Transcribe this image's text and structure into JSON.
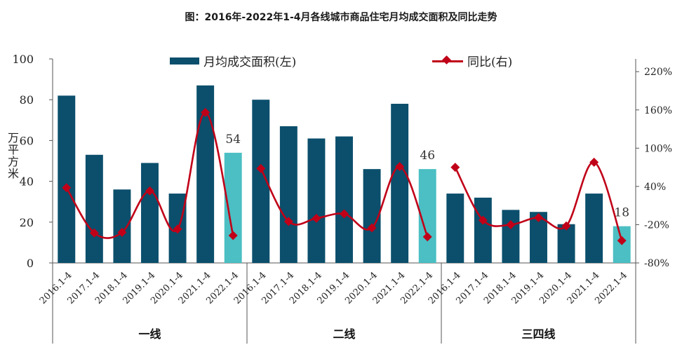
{
  "title": "图：2016年-2022年1-4月各线城市商品住宅月均成交面积及同比走势",
  "colors": {
    "bar": "#0b4f6c",
    "bar_highlight": "#4bbfc3",
    "line": "#c00018"
  },
  "y_left_label": [
    "万",
    "平",
    "方",
    "米"
  ],
  "legend": {
    "bar": "月均成交面积(左)",
    "line": "同比(右)"
  },
  "chart_data": {
    "type": "bar",
    "categories": [
      "2016.1-4",
      "2017.1-4",
      "2018.1-4",
      "2019.1-4",
      "2020.1-4",
      "2021.1-4",
      "2022.1-4",
      "2016.1-4",
      "2017.1-4",
      "2018.1-4",
      "2019.1-4",
      "2020.1-4",
      "2021.1-4",
      "2022.1-4",
      "2016.1-4",
      "2017.1-4",
      "2018.1-4",
      "2019.1-4",
      "2020.1-4",
      "2021.1-4",
      "2022.1-4"
    ],
    "groups": [
      {
        "label": "一线",
        "start": 0,
        "end": 6
      },
      {
        "label": "二线",
        "start": 7,
        "end": 13
      },
      {
        "label": "三四线",
        "start": 14,
        "end": 20
      }
    ],
    "series": [
      {
        "name": "月均成交面积(左)",
        "axis": "left",
        "type": "bar",
        "values": [
          82,
          53,
          36,
          49,
          34,
          87,
          54,
          80,
          67,
          61,
          62,
          46,
          78,
          46,
          34,
          32,
          26,
          25,
          19,
          34,
          18
        ]
      },
      {
        "name": "同比(右)",
        "axis": "right",
        "type": "line",
        "segmented_by_group": true,
        "values": [
          38,
          -33,
          -32,
          33,
          -27,
          156,
          -37,
          68,
          -15,
          -10,
          -3,
          -25,
          71,
          -39,
          70,
          -13,
          -20,
          -9,
          -22,
          78,
          -45
        ]
      }
    ],
    "highlight_indices": [
      6,
      13,
      20
    ],
    "data_labels": [
      {
        "index": 6,
        "text": "54"
      },
      {
        "index": 13,
        "text": "46"
      },
      {
        "index": 20,
        "text": "18"
      }
    ],
    "y_left": {
      "min": 0,
      "max": 100,
      "ticks": [
        0,
        20,
        40,
        60,
        80,
        100
      ]
    },
    "y_right": {
      "min": -80,
      "max": 240,
      "ticks": [
        -80,
        -20,
        40,
        100,
        160,
        220
      ],
      "tick_labels": [
        "-80%",
        "-20%",
        "40%",
        "100%",
        "160%",
        "220%"
      ]
    },
    "grid": false,
    "legend_position": "top"
  }
}
